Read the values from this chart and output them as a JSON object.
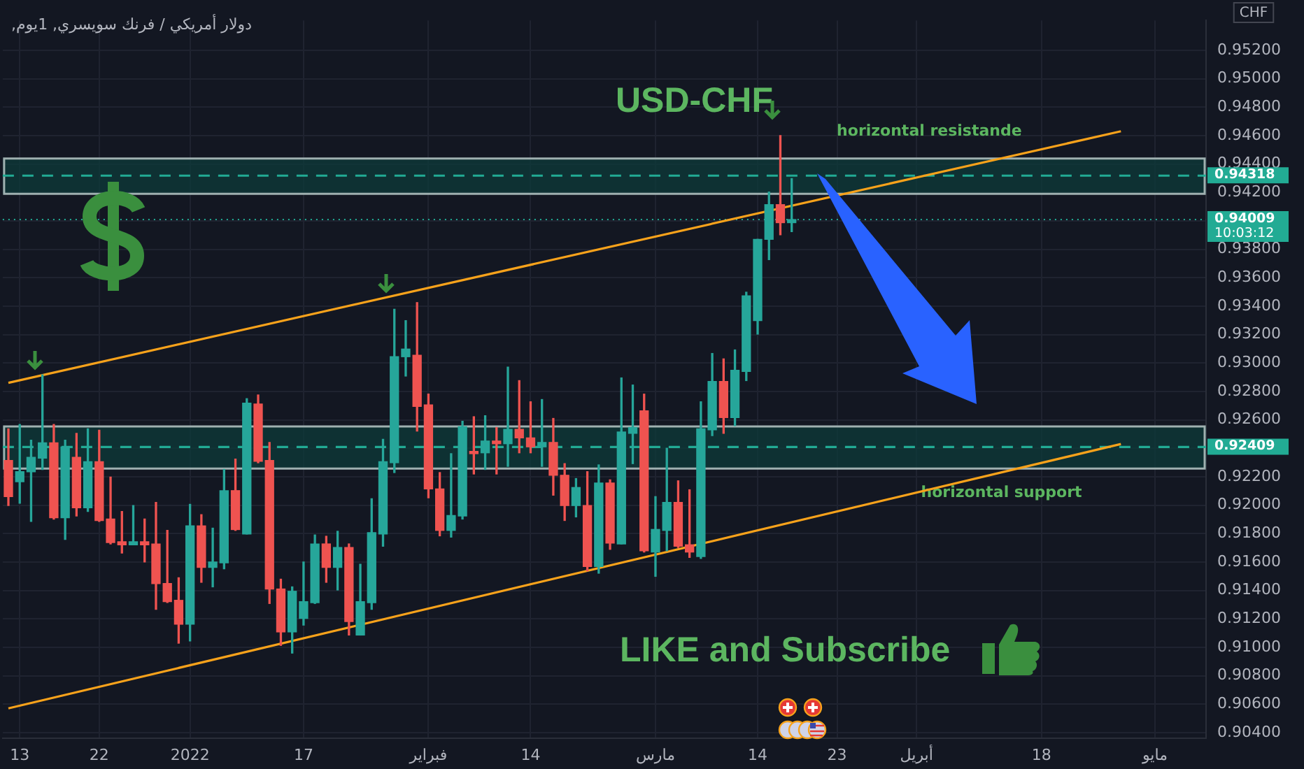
{
  "chart_data": {
    "type": "candlestick",
    "title": "USD-CHF",
    "subtitle": "دولار أمريكي / فرنك سويسري, 1يوم,",
    "ylabel": "CHF",
    "categories": [
      null,
      "13",
      null,
      null,
      null,
      null,
      null,
      null,
      "22",
      null,
      null,
      null,
      null,
      null,
      null,
      null,
      "2022",
      null,
      null,
      null,
      null,
      null,
      null,
      null,
      null,
      null,
      "17",
      null,
      null,
      null,
      null,
      null,
      null,
      null,
      null,
      null,
      null,
      "فبراير",
      null,
      null,
      null,
      null,
      null,
      null,
      null,
      null,
      "14",
      null,
      null,
      null,
      null,
      null,
      null,
      null,
      null,
      null,
      null,
      "مارس",
      null,
      null,
      null,
      null,
      null,
      null,
      null,
      null,
      "14",
      null,
      null,
      null,
      null,
      null,
      null,
      "23",
      null,
      null,
      null,
      null,
      null,
      null,
      "أبريل",
      null,
      null,
      null,
      null,
      null,
      null,
      null,
      null,
      null,
      null,
      "18",
      null,
      null,
      null,
      null,
      null,
      null,
      null,
      null,
      null,
      "مايو",
      null,
      null,
      null,
      null
    ],
    "ohlc": [
      [
        0.92314,
        0.92537,
        0.91997,
        0.9206
      ],
      [
        0.92165,
        0.92568,
        0.92013,
        0.92235
      ],
      [
        0.92235,
        0.92457,
        0.91886,
        0.92336
      ],
      [
        0.9233,
        0.92917,
        0.92251,
        0.92438
      ],
      [
        0.92438,
        0.92568,
        0.91902,
        0.91911
      ],
      [
        0.91911,
        0.92457,
        0.91759,
        0.92409
      ],
      [
        0.92336,
        0.92505,
        0.91924,
        0.91981
      ],
      [
        0.91981,
        0.92537,
        0.91955,
        0.92305
      ],
      [
        0.92305,
        0.92527,
        0.91886,
        0.91892
      ],
      [
        0.91902,
        0.92197,
        0.91727,
        0.91737
      ],
      [
        0.91743,
        0.91955,
        0.91663,
        0.91721
      ],
      [
        0.91721,
        0.91997,
        0.91721,
        0.91743
      ],
      [
        0.91743,
        0.91902,
        0.916,
        0.91721
      ],
      [
        0.91727,
        0.92019,
        0.91267,
        0.91448
      ],
      [
        0.91448,
        0.91822,
        0.91315,
        0.91321
      ],
      [
        0.9133,
        0.91489,
        0.91029,
        0.91162
      ],
      [
        0.91162,
        0.92006,
        0.91045,
        0.91854
      ],
      [
        0.91854,
        0.91933,
        0.91457,
        0.91562
      ],
      [
        0.91562,
        0.91838,
        0.91425,
        0.916
      ],
      [
        0.91594,
        0.92251,
        0.91552,
        0.92102
      ],
      [
        0.92102,
        0.92324,
        0.91822,
        0.91828
      ],
      [
        0.91797,
        0.92749,
        0.91797,
        0.92717
      ],
      [
        0.92711,
        0.92775,
        0.92298,
        0.92308
      ],
      [
        0.92314,
        0.92441,
        0.91308,
        0.9141
      ],
      [
        0.9141,
        0.91479,
        0.91013,
        0.91108
      ],
      [
        0.91108,
        0.91425,
        0.90959,
        0.91394
      ],
      [
        0.91203,
        0.916,
        0.91156,
        0.91321
      ],
      [
        0.91314,
        0.9179,
        0.91308,
        0.91727
      ],
      [
        0.91727,
        0.91781,
        0.91457,
        0.91562
      ],
      [
        0.91562,
        0.91816,
        0.91403,
        0.91702
      ],
      [
        0.91702,
        0.91727,
        0.91086,
        0.91181
      ],
      [
        0.91086,
        0.91584,
        0.91086,
        0.91321
      ],
      [
        0.91314,
        0.92045,
        0.91267,
        0.91806
      ],
      [
        0.91797,
        0.92463,
        0.91711,
        0.92305
      ],
      [
        0.92298,
        0.93378,
        0.92229,
        0.93044
      ],
      [
        0.93044,
        0.93298,
        0.92908,
        0.93098
      ],
      [
        0.93054,
        0.93425,
        0.92521,
        0.92695
      ],
      [
        0.92705,
        0.92781,
        0.92051,
        0.92114
      ],
      [
        0.92114,
        0.92229,
        0.91784,
        0.91822
      ],
      [
        0.91822,
        0.92362,
        0.91775,
        0.91927
      ],
      [
        0.91924,
        0.9259,
        0.91902,
        0.92552
      ],
      [
        0.92378,
        0.92622,
        0.92219,
        0.92362
      ],
      [
        0.92368,
        0.92629,
        0.92251,
        0.92451
      ],
      [
        0.92451,
        0.92546,
        0.92219,
        0.92432
      ],
      [
        0.92432,
        0.92971,
        0.92273,
        0.92533
      ],
      [
        0.92533,
        0.92876,
        0.92368,
        0.92473
      ],
      [
        0.92473,
        0.92727,
        0.92368,
        0.9241
      ],
      [
        0.9241,
        0.92743,
        0.92273,
        0.92441
      ],
      [
        0.92441,
        0.9261,
        0.9207,
        0.9221
      ],
      [
        0.9221,
        0.92292,
        0.91892,
        0.91997
      ],
      [
        0.91997,
        0.92187,
        0.91917,
        0.92124
      ],
      [
        0.91997,
        0.92235,
        0.91537,
        0.91568
      ],
      [
        0.91568,
        0.92283,
        0.91521,
        0.92156
      ],
      [
        0.92156,
        0.92178,
        0.91689,
        0.91733
      ],
      [
        0.91727,
        0.92895,
        0.91727,
        0.92514
      ],
      [
        0.92505,
        0.92845,
        0.92292,
        0.92546
      ],
      [
        0.92664,
        0.92781,
        0.9167,
        0.91679
      ],
      [
        0.9167,
        0.9206,
        0.91499,
        0.91829
      ],
      [
        0.91822,
        0.924,
        0.91679,
        0.92019
      ],
      [
        0.92019,
        0.92171,
        0.91702,
        0.91711
      ],
      [
        0.91721,
        0.92108,
        0.91632,
        0.9167
      ],
      [
        0.91638,
        0.92727,
        0.91625,
        0.92537
      ],
      [
        0.9253,
        0.93067,
        0.92489,
        0.9287
      ],
      [
        0.9287,
        0.93029,
        0.92505,
        0.92616
      ],
      [
        0.92616,
        0.93092,
        0.92559,
        0.92949
      ],
      [
        0.9294,
        0.93498,
        0.92876,
        0.93473
      ],
      [
        0.93298,
        0.9387,
        0.93203,
        0.9387
      ],
      [
        0.9387,
        0.94203,
        0.93727,
        0.94114
      ],
      [
        0.94114,
        0.946,
        0.93902,
        0.93987
      ],
      [
        0.93987,
        0.94298,
        0.93924,
        0.94009
      ],
      null,
      null,
      null,
      null,
      null,
      null,
      null,
      null,
      null,
      null,
      null,
      null,
      null,
      null,
      null,
      null,
      null,
      null,
      null,
      null,
      null,
      null,
      null,
      null,
      null,
      null,
      null,
      null,
      null,
      null,
      null,
      null,
      null,
      null,
      null,
      null
    ],
    "colors": [
      "#ef5350",
      "#26a69a",
      "#26a69a",
      "#26a69a",
      "#ef5350",
      "#26a69a",
      "#ef5350",
      "#26a69a",
      "#ef5350",
      "#ef5350",
      "#ef5350",
      "#26a69a",
      "#ef5350",
      "#ef5350",
      "#ef5350",
      "#ef5350",
      "#26a69a",
      "#ef5350",
      "#26a69a",
      "#26a69a",
      "#ef5350",
      "#26a69a",
      "#ef5350",
      "#ef5350",
      "#ef5350",
      "#26a69a",
      "#26a69a",
      "#26a69a",
      "#ef5350",
      "#26a69a",
      "#ef5350",
      "#26a69a",
      "#26a69a",
      "#26a69a",
      "#26a69a",
      "#26a69a",
      "#ef5350",
      "#ef5350",
      "#ef5350",
      "#26a69a",
      "#26a69a",
      "#ef5350",
      "#26a69a",
      "#ef5350",
      "#26a69a",
      "#ef5350",
      "#ef5350",
      "#26a69a",
      "#ef5350",
      "#ef5350",
      "#26a69a",
      "#ef5350",
      "#26a69a",
      "#ef5350",
      "#26a69a",
      "#26a69a",
      "#ef5350",
      "#26a69a",
      "#26a69a",
      "#ef5350",
      "#ef5350",
      "#26a69a",
      "#26a69a",
      "#ef5350",
      "#26a69a",
      "#26a69a",
      "#26a69a",
      "#26a69a",
      "#ef5350",
      "#26a69a",
      null,
      null,
      null,
      null,
      null,
      null,
      null,
      null,
      null,
      null,
      null,
      null,
      null,
      null,
      null,
      null,
      null,
      null,
      null,
      null,
      null,
      null,
      null,
      null,
      null,
      null,
      null,
      null,
      null,
      null,
      null,
      null,
      null,
      null,
      null,
      null
    ],
    "series": [
      {
        "type": "line",
        "color": "#f7a21b",
        "values": [
          0.9286,
          null,
          null,
          null,
          null,
          null,
          null,
          null,
          null,
          null,
          null,
          null,
          null,
          null,
          null,
          null,
          null,
          null,
          null,
          null,
          null,
          null,
          null,
          null,
          null,
          null,
          null,
          null,
          null,
          null,
          null,
          null,
          null,
          null,
          null,
          null,
          null,
          null,
          null,
          null,
          null,
          null,
          null,
          null,
          null,
          null,
          null,
          null,
          null,
          null,
          null,
          null,
          null,
          null,
          null,
          null,
          null,
          null,
          null,
          null,
          null,
          null,
          null,
          null,
          null,
          null,
          null,
          null,
          null,
          null,
          null,
          null,
          null,
          null,
          null,
          null,
          null,
          null,
          null,
          null,
          null,
          null,
          null,
          null,
          null,
          null,
          null,
          null,
          null,
          null,
          null,
          null,
          null,
          null,
          null,
          null,
          null,
          null,
          0.9463,
          null,
          null,
          null,
          null,
          null,
          null,
          null
        ]
      },
      {
        "type": "line",
        "color": "#f7a21b",
        "values": [
          0.9057,
          null,
          null,
          null,
          null,
          null,
          null,
          null,
          null,
          null,
          null,
          null,
          null,
          null,
          null,
          null,
          null,
          null,
          null,
          null,
          null,
          null,
          null,
          null,
          null,
          null,
          null,
          null,
          null,
          null,
          null,
          null,
          null,
          null,
          null,
          null,
          null,
          null,
          null,
          null,
          null,
          null,
          null,
          null,
          null,
          null,
          null,
          null,
          null,
          null,
          null,
          null,
          null,
          null,
          null,
          null,
          null,
          null,
          null,
          null,
          null,
          null,
          null,
          null,
          null,
          null,
          null,
          null,
          null,
          null,
          null,
          null,
          null,
          null,
          null,
          null,
          null,
          null,
          null,
          null,
          null,
          null,
          null,
          null,
          null,
          null,
          null,
          null,
          null,
          null,
          null,
          null,
          null,
          null,
          null,
          null,
          null,
          null,
          0.9243,
          null,
          null,
          null,
          null,
          null,
          null,
          null
        ]
      }
    ],
    "marker": "none",
    "ylim": [
      0.9036,
      0.9541
    ],
    "yticks": [
      {
        "value": 0.904,
        "label": "0.90400"
      },
      {
        "value": 0.906,
        "label": "0.90600"
      },
      {
        "value": 0.908,
        "label": "0.90800"
      },
      {
        "value": 0.91,
        "label": "0.91000"
      },
      {
        "value": 0.912,
        "label": "0.91200"
      },
      {
        "value": 0.914,
        "label": "0.91400"
      },
      {
        "value": 0.916,
        "label": "0.91600"
      },
      {
        "value": 0.918,
        "label": "0.91800"
      },
      {
        "value": 0.92,
        "label": "0.92000"
      },
      {
        "value": 0.922,
        "label": "0.92200"
      },
      {
        "value": 0.924,
        "label": null
      },
      {
        "value": 0.926,
        "label": "0.92600"
      },
      {
        "value": 0.928,
        "label": "0.92800"
      },
      {
        "value": 0.93,
        "label": "0.93000"
      },
      {
        "value": 0.932,
        "label": "0.93200"
      },
      {
        "value": 0.934,
        "label": "0.93400"
      },
      {
        "value": 0.936,
        "label": "0.93600"
      },
      {
        "value": 0.938,
        "label": "0.93800"
      },
      {
        "value": 0.94,
        "label": null
      },
      {
        "value": 0.942,
        "label": "0.94200"
      },
      {
        "value": 0.944,
        "label": "0.94400"
      },
      {
        "value": 0.946,
        "label": "0.94600"
      },
      {
        "value": 0.948,
        "label": "0.94800"
      },
      {
        "value": 0.95,
        "label": "0.95000"
      },
      {
        "value": 0.952,
        "label": "0.95200"
      }
    ],
    "grid": true,
    "ref_lines": [
      {
        "axis": "y",
        "value": 0.94318,
        "label": "0.94318",
        "color": "#22ab94",
        "line_style": "dashed"
      },
      {
        "axis": "y",
        "value": 0.94009,
        "label": "0.94009\n10:03:12",
        "color": "#22ab94",
        "line_style": "dotted"
      },
      {
        "axis": "y",
        "value": 0.92409,
        "label": "0.92409",
        "color": "#22ab94",
        "line_style": "dashed"
      }
    ],
    "bands": [
      {
        "axis": "y",
        "from": 0.9419,
        "to": 0.94438,
        "label": "horizontal resistande",
        "color": "#0e3b3a"
      },
      {
        "axis": "y",
        "from": 0.92257,
        "to": 0.92553,
        "label": "horizontal support",
        "color": "#0e3b3a"
      }
    ],
    "annotations": [
      "LIKE and Subscribe"
    ]
  }
}
